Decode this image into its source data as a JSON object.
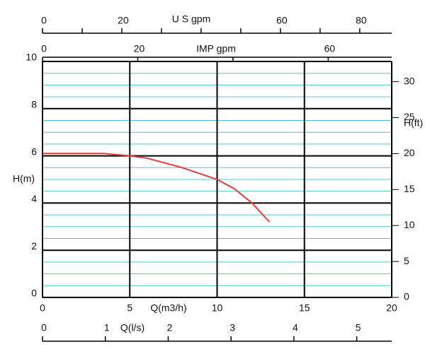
{
  "chart_data": {
    "type": "line",
    "xlabel": "Q(m3/h)",
    "xlim": [
      0,
      20
    ],
    "xticks": [
      0,
      5,
      10,
      15,
      20
    ],
    "ylabel": "H(m)",
    "ylim": [
      0,
      10
    ],
    "yticks": [
      0,
      2,
      4,
      6,
      8,
      10
    ],
    "yminor_step": 0.5,
    "y2label": "H(ft)",
    "y2lim": [
      0,
      32.81
    ],
    "y2ticks": [
      0,
      5,
      10,
      15,
      20,
      25,
      30
    ],
    "top_axis": {
      "label": "U S gpm",
      "lim": [
        0,
        88.06
      ],
      "ticks": [
        0,
        20,
        60,
        80
      ],
      "minor_ticks": [
        10,
        30,
        40,
        50,
        70
      ]
    },
    "top_axis2": {
      "label": "IMP gpm",
      "lim": [
        0,
        73.33
      ],
      "ticks": [
        0,
        20,
        60
      ],
      "minor_ticks": [
        40
      ]
    },
    "bottom_axis2": {
      "label": "Q(l/s)",
      "lim": [
        0,
        5.556
      ],
      "ticks": [
        0,
        1,
        2,
        3,
        4,
        5
      ]
    },
    "grid": true,
    "series": [
      {
        "name": "H",
        "color": "#e03c3c",
        "x": [
          0,
          3.5,
          5,
          6,
          8,
          10,
          11,
          12,
          13
        ],
        "values": [
          6.1,
          6.1,
          6.0,
          5.9,
          5.5,
          5.0,
          4.6,
          4.0,
          3.2
        ]
      }
    ]
  }
}
